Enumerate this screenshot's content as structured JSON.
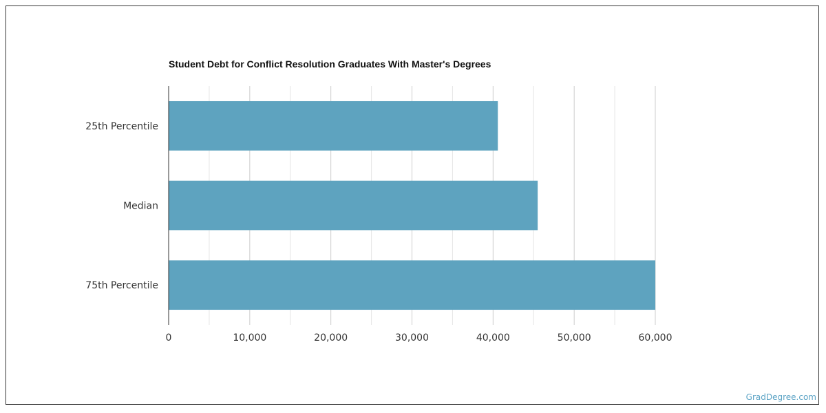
{
  "chart_data": {
    "type": "bar",
    "orientation": "horizontal",
    "title": "Student Debt for Conflict Resolution Graduates With Master's Degrees",
    "categories": [
      "25th Percentile",
      "Median",
      "75th Percentile"
    ],
    "values": [
      40587,
      45500,
      60000
    ],
    "xlim": [
      0,
      60000
    ],
    "x_ticks": [
      0,
      10000,
      20000,
      30000,
      40000,
      50000,
      60000
    ],
    "x_tick_labels": [
      "0",
      "10,000",
      "20,000",
      "30,000",
      "40,000",
      "50,000",
      "60,000"
    ],
    "xlabel": "",
    "ylabel": "",
    "grid": true,
    "bar_color": "#5ea3bf",
    "grid_color": "#cccccc"
  },
  "footer": {
    "watermark": "GradDegree.com"
  }
}
